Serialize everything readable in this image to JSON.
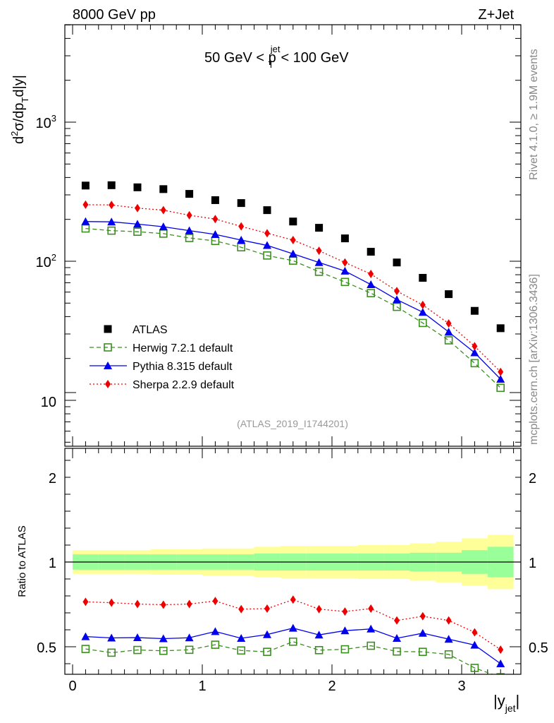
{
  "header": {
    "left": "8000 GeV pp",
    "right": "Z+Jet"
  },
  "side_labels": {
    "rivet": "Rivet 4.1.0, ≥ 1.9M events",
    "mcplots": "mcplots.cern.ch [arXiv:1306.3436]"
  },
  "upper_panel": {
    "ylabel_prefix": "d",
    "ylabel_sup": "2",
    "ylabel_mid": "σ/dp",
    "ylabel_sub": "T",
    "ylabel_suffix": "d|y|",
    "range_text_left": "50 GeV < p",
    "range_text_sup": "jet",
    "range_text_sub": "T",
    "range_text_right": "< 100 GeV",
    "analysis_id": "(ATLAS_2019_I1744201)",
    "ytick_major": [
      {
        "value": 10,
        "label": "10"
      },
      {
        "value": 100,
        "label_base": "10",
        "label_exp": "2"
      },
      {
        "value": 1000,
        "label_base": "10",
        "label_exp": "3"
      }
    ]
  },
  "lower_panel": {
    "ylabel": "Ratio to ATLAS",
    "ytick_labels": [
      "0.5",
      "1",
      "2"
    ],
    "xlabel_main": "|y",
    "xlabel_sub": "jet",
    "xlabel_end": "|",
    "xtick_labels": [
      "0",
      "1",
      "2",
      "3"
    ]
  },
  "colors": {
    "atlas": "#000000",
    "herwig": "#3a8f1f",
    "pythia": "#0000ee",
    "sherpa": "#ee0000",
    "band_inner": "#99ff99",
    "band_outer": "#ffff99"
  },
  "chart_data": {
    "type": "scatter",
    "title": "50 GeV < pT jet < 100 GeV",
    "xlabel": "|y_jet|",
    "ylabel": "d2σ/dpT d|y|",
    "yscale": "log",
    "xlim": [
      -0.1,
      3.45
    ],
    "ylim": [
      5,
      6000
    ],
    "ratio_ylim": [
      0.35,
      2.45
    ],
    "x": [
      0.1,
      0.3,
      0.5,
      0.7,
      0.9,
      1.1,
      1.3,
      1.5,
      1.7,
      1.9,
      2.1,
      2.3,
      2.5,
      2.7,
      2.9,
      3.1,
      3.3
    ],
    "series": [
      {
        "name": "ATLAS",
        "marker": "square",
        "line": "none",
        "values": [
          350,
          352,
          340,
          330,
          305,
          275,
          262,
          233,
          193,
          174,
          146,
          117,
          98,
          76,
          58,
          44,
          33
        ]
      },
      {
        "name": "Herwig 7.2.1 default",
        "marker": "open-square",
        "line": "dashed",
        "values": [
          172,
          166,
          163,
          158,
          147,
          140,
          126,
          110,
          101,
          84,
          71,
          59,
          47,
          36,
          27,
          18.5,
          12.3
        ]
      },
      {
        "name": "Pythia 8.315 default",
        "marker": "triangle",
        "line": "solid",
        "values": [
          193,
          192,
          185,
          177,
          166,
          156,
          142,
          130,
          113,
          98,
          85,
          68,
          53,
          43,
          31,
          22,
          14.2
        ]
      },
      {
        "name": "Sherpa 2.2.9 default",
        "marker": "diamond",
        "line": "dotted",
        "values": [
          255,
          254,
          241,
          233,
          214,
          201,
          178,
          159,
          142,
          119,
          98,
          81,
          61,
          48.5,
          35.7,
          24.5,
          16
        ]
      }
    ],
    "ratio": {
      "Herwig 7.2.1 default": [
        0.487,
        0.465,
        0.481,
        0.476,
        0.482,
        0.512,
        0.478,
        0.47,
        0.53,
        0.48,
        0.485,
        0.506,
        0.472,
        0.47,
        0.455,
        0.375,
        0.32
      ],
      "Pythia 8.315 default": [
        0.56,
        0.552,
        0.554,
        0.548,
        0.553,
        0.59,
        0.55,
        0.572,
        0.61,
        0.57,
        0.595,
        0.605,
        0.55,
        0.58,
        0.545,
        0.51,
        0.4
      ],
      "Sherpa 2.2.9 default": [
        0.765,
        0.76,
        0.752,
        0.748,
        0.752,
        0.77,
        0.722,
        0.725,
        0.778,
        0.722,
        0.708,
        0.725,
        0.655,
        0.68,
        0.655,
        0.585,
        0.483
      ]
    },
    "uncertainty_band": {
      "x_edges": [
        0.0,
        0.2,
        0.4,
        0.6,
        0.8,
        1.0,
        1.2,
        1.4,
        1.6,
        1.8,
        2.0,
        2.2,
        2.4,
        2.6,
        2.8,
        3.0,
        3.2,
        3.4
      ],
      "inner": [
        0.045,
        0.045,
        0.045,
        0.045,
        0.045,
        0.045,
        0.045,
        0.05,
        0.05,
        0.05,
        0.05,
        0.05,
        0.05,
        0.055,
        0.055,
        0.07,
        0.09
      ],
      "outer": [
        0.07,
        0.07,
        0.07,
        0.075,
        0.075,
        0.08,
        0.08,
        0.09,
        0.095,
        0.095,
        0.095,
        0.1,
        0.1,
        0.11,
        0.12,
        0.14,
        0.16
      ]
    }
  }
}
